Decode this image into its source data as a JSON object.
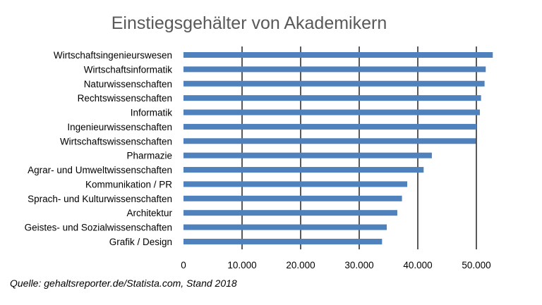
{
  "chart_data": {
    "type": "bar",
    "orientation": "horizontal",
    "title": "Einstiegsgehälter von Akademikern",
    "source": "Quelle: gehaltsreporter.de/Statista.com, Stand 2018",
    "categories": [
      "Wirtschaftsingenieurswesen",
      "Wirtschaftsinformatik",
      "Naturwissenschaften",
      "Rechtswissenschaften",
      "Informatik",
      "Ingenieurwissenschaften",
      "Wirtschaftswissenschaften",
      "Pharmazie",
      "Agrar- und Umweltwissenschaften",
      "Kommunikation / PR",
      "Sprach- und Kulturwissenschaften",
      "Architektur",
      "Geistes- und Sozialwissenschaften",
      "Grafik / Design"
    ],
    "values": [
      52800,
      51600,
      51400,
      50800,
      50600,
      50000,
      49900,
      42400,
      41000,
      38200,
      37300,
      36500,
      34700,
      33900
    ],
    "xlim": [
      0,
      53000
    ],
    "ticks": [
      0,
      10000,
      20000,
      30000,
      40000,
      50000
    ],
    "tick_labels": [
      "0",
      "10.000",
      "20.000",
      "30.000",
      "40.000",
      "50.000"
    ],
    "grid": true,
    "bar_color": "#4f81bd",
    "grid_color": "#000000"
  }
}
